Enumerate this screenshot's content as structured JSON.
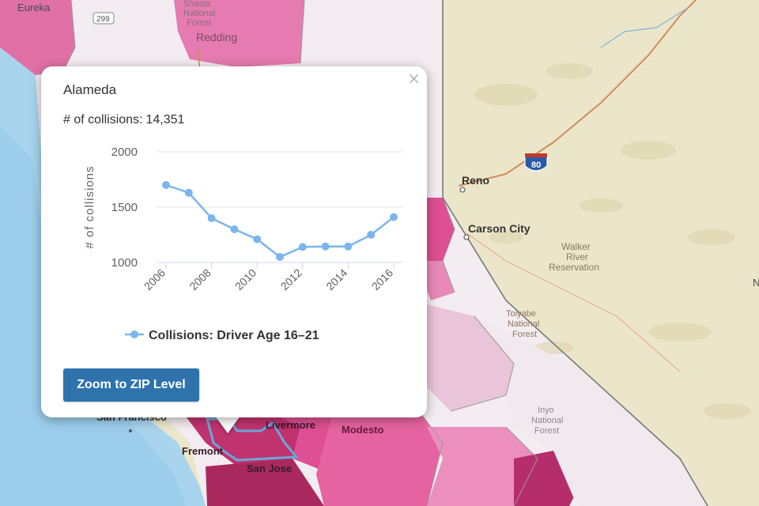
{
  "map": {
    "places": {
      "eureka": "Eureka",
      "shasta_forest_1": "Shasta",
      "shasta_forest_2": "National",
      "shasta_forest_3": "Forest",
      "redding": "Redding",
      "route_299": "299",
      "reno": "Reno",
      "interstate_80": "80",
      "carson_city": "Carson City",
      "walker_1": "Walker",
      "walker_2": "River",
      "walker_3": "Reservation",
      "toiyabe_1": "Toiyabe",
      "toiyabe_2": "National",
      "toiyabe_3": "Forest",
      "inyo_1": "Inyo",
      "inyo_2": "National",
      "inyo_3": "Forest",
      "san_francisco": "San Francisco",
      "livermore": "Livermore",
      "modesto": "Modesto",
      "fremont": "Fremont",
      "san_jose": "San Jose",
      "edge_n": "N"
    },
    "colors": {
      "ocean": "#a9d4ee",
      "land": "#ebe6c9",
      "county_light": "#f4e3ec",
      "county_pink": "#e070a6",
      "county_medium": "#de4f93",
      "county_dark": "#b52d6a",
      "state_border": "#8c8c8c",
      "highway": "#d08a5a"
    }
  },
  "popup": {
    "title": "Alameda",
    "stat_label": "# of collisions:",
    "stat_value": "14,351",
    "close_symbol": "×",
    "button_label": "Zoom to ZIP Level"
  },
  "chart_data": {
    "type": "line",
    "x": [
      2006,
      2007,
      2008,
      2009,
      2010,
      2011,
      2012,
      2013,
      2014,
      2015,
      2016
    ],
    "series": [
      {
        "name": "Collisions: Driver Age 16–21",
        "values": [
          1700,
          1630,
          1400,
          1300,
          1210,
          1050,
          1140,
          1145,
          1145,
          1250,
          1410
        ],
        "color": "#7cb5ec"
      }
    ],
    "xticks": [
      "2006",
      "2008",
      "2010",
      "2012",
      "2014",
      "2016"
    ],
    "yticks": [
      "1000",
      "1500",
      "2000"
    ],
    "ylim": [
      1000,
      2000
    ],
    "xlim": [
      2006,
      2016
    ],
    "ylabel": "# of collisions",
    "xlabel": "",
    "legend": "bottom-center",
    "grid": true
  }
}
